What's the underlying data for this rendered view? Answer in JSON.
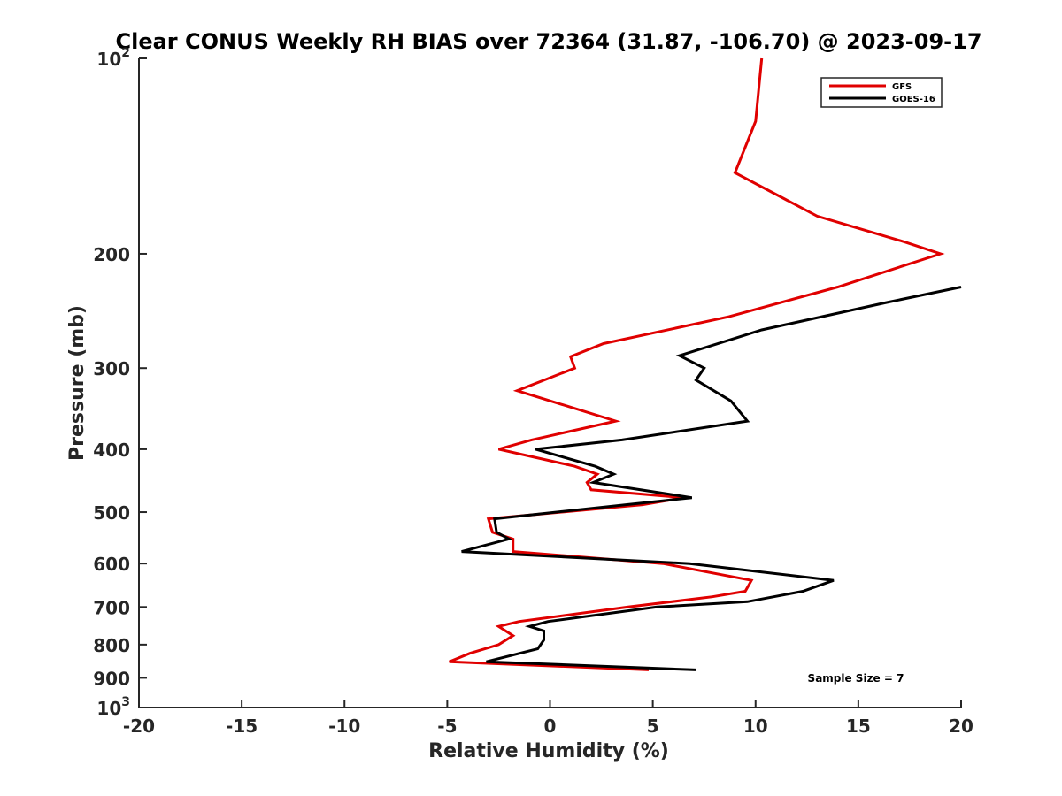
{
  "chart_data": {
    "type": "line",
    "title": "Clear CONUS Weekly RH BIAS over 72364 (31.87, -106.70) @ 2023-09-17",
    "xlabel": "Relative Humidity (%)",
    "ylabel": "Pressure (mb)",
    "xlim": [
      -20,
      20
    ],
    "ylim": [
      100,
      1000
    ],
    "y_scale": "log",
    "y_reversed": true,
    "x_ticks": [
      -20,
      -15,
      -10,
      -5,
      0,
      5,
      10,
      15,
      20
    ],
    "x_tick_labels": [
      "-20",
      "-15",
      "-10",
      "-5",
      "0",
      "5",
      "10",
      "15",
      "20"
    ],
    "y_ticks": [
      100,
      200,
      300,
      400,
      500,
      600,
      700,
      800,
      900,
      1000
    ],
    "y_tick_labels": [
      {
        "base": "10",
        "exp": "2"
      },
      {
        "base": "200",
        "exp": ""
      },
      {
        "base": "300",
        "exp": ""
      },
      {
        "base": "400",
        "exp": ""
      },
      {
        "base": "500",
        "exp": ""
      },
      {
        "base": "600",
        "exp": ""
      },
      {
        "base": "700",
        "exp": ""
      },
      {
        "base": "800",
        "exp": ""
      },
      {
        "base": "900",
        "exp": ""
      },
      {
        "base": "10",
        "exp": "3"
      }
    ],
    "grid": false,
    "legend_position": "top-right",
    "annotation": "Sample Size = 7",
    "series": [
      {
        "name": "GFS",
        "color": "#e00000",
        "points": [
          [
            10.3,
            100
          ],
          [
            10.0,
            125
          ],
          [
            9.0,
            150
          ],
          [
            13.0,
            175
          ],
          [
            17.3,
            192
          ],
          [
            19.0,
            200
          ],
          [
            14.0,
            225
          ],
          [
            8.7,
            250
          ],
          [
            2.6,
            275
          ],
          [
            1.0,
            288
          ],
          [
            1.2,
            300
          ],
          [
            -1.6,
            325
          ],
          [
            3.2,
            362
          ],
          [
            -0.9,
            387
          ],
          [
            -2.5,
            400
          ],
          [
            1.2,
            425
          ],
          [
            2.3,
            437
          ],
          [
            1.8,
            450
          ],
          [
            2.0,
            462
          ],
          [
            6.5,
            475
          ],
          [
            4.5,
            487
          ],
          [
            -3.0,
            512
          ],
          [
            -2.8,
            537
          ],
          [
            -1.8,
            550
          ],
          [
            -1.8,
            575
          ],
          [
            5.5,
            600
          ],
          [
            9.8,
            637
          ],
          [
            9.5,
            662
          ],
          [
            7.9,
            675
          ],
          [
            3.8,
            700
          ],
          [
            -1.5,
            737
          ],
          [
            -2.5,
            750
          ],
          [
            -1.8,
            775
          ],
          [
            -2.5,
            800
          ],
          [
            -3.9,
            825
          ],
          [
            -4.9,
            850
          ],
          [
            4.8,
            875
          ]
        ]
      },
      {
        "name": "GOES-16",
        "color": "#000000",
        "points": [
          [
            20.0,
            225
          ],
          [
            16.3,
            238
          ],
          [
            10.3,
            262
          ],
          [
            6.3,
            287
          ],
          [
            7.5,
            300
          ],
          [
            7.1,
            313
          ],
          [
            8.8,
            337
          ],
          [
            9.6,
            362
          ],
          [
            3.5,
            387
          ],
          [
            -0.7,
            400
          ],
          [
            2.2,
            425
          ],
          [
            3.1,
            437
          ],
          [
            2.1,
            450
          ],
          [
            6.9,
            475
          ],
          [
            3.7,
            487
          ],
          [
            -2.7,
            512
          ],
          [
            -2.6,
            537
          ],
          [
            -2.0,
            550
          ],
          [
            -4.3,
            575
          ],
          [
            6.8,
            600
          ],
          [
            13.8,
            637
          ],
          [
            12.3,
            662
          ],
          [
            9.6,
            687
          ],
          [
            5.2,
            700
          ],
          [
            -0.1,
            737
          ],
          [
            -1.0,
            750
          ],
          [
            -0.3,
            762
          ],
          [
            -0.3,
            787
          ],
          [
            -0.6,
            812
          ],
          [
            -3.1,
            850
          ],
          [
            7.1,
            875
          ]
        ]
      }
    ]
  }
}
